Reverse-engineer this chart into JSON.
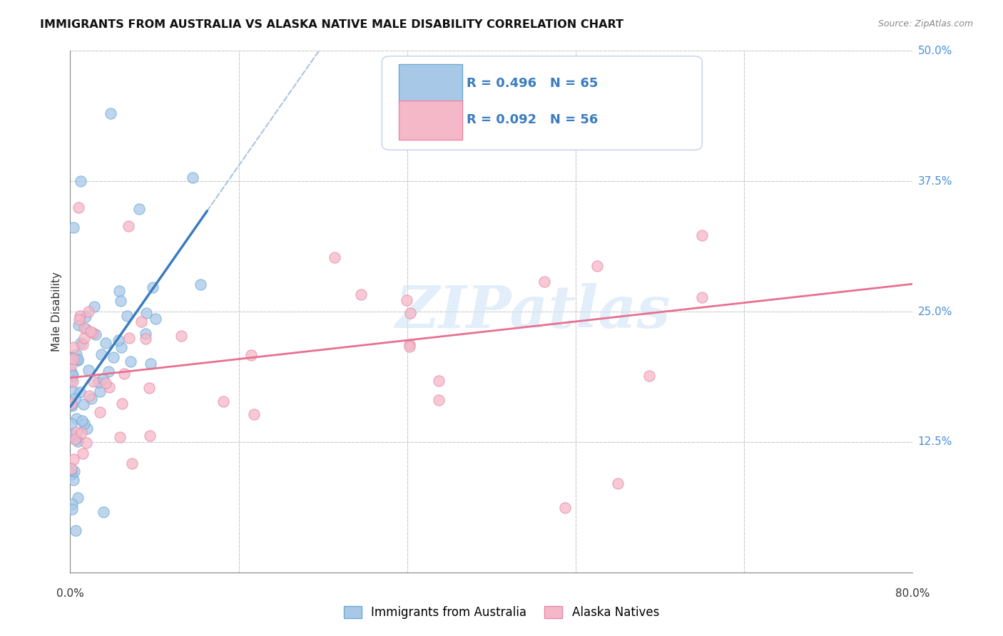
{
  "title": "IMMIGRANTS FROM AUSTRALIA VS ALASKA NATIVE MALE DISABILITY CORRELATION CHART",
  "source": "Source: ZipAtlas.com",
  "ylabel": "Male Disability",
  "legend_label1": "Immigrants from Australia",
  "legend_label2": "Alaska Natives",
  "color_blue_fill": "#a8c8e8",
  "color_blue_edge": "#6aaad4",
  "color_pink_fill": "#f4b8c8",
  "color_pink_edge": "#e888a8",
  "color_blue_line": "#3a7cbf",
  "color_pink_line": "#e87090",
  "color_dashed_line": "#aac4e0",
  "color_ytick": "#4a90d9",
  "xlim": [
    0.0,
    0.8
  ],
  "ylim": [
    0.0,
    0.5
  ],
  "ytick_vals": [
    0.0,
    0.125,
    0.25,
    0.375,
    0.5
  ],
  "ytick_labels": [
    "",
    "12.5%",
    "25.0%",
    "37.5%",
    "50.0%"
  ],
  "xtick_left_label": "0.0%",
  "xtick_right_label": "80.0%",
  "grid_color": "#cccccc",
  "background_color": "#ffffff",
  "watermark_text": "ZIPatlas",
  "watermark_color": "#d0e4f5",
  "legend_r1": "R = 0.496   N = 65",
  "legend_r2": "R = 0.092   N = 56",
  "legend_color": "#3a7cbf",
  "legend_box_color": "#e8f0f8",
  "legend_box_edge": "#c0d0e8"
}
